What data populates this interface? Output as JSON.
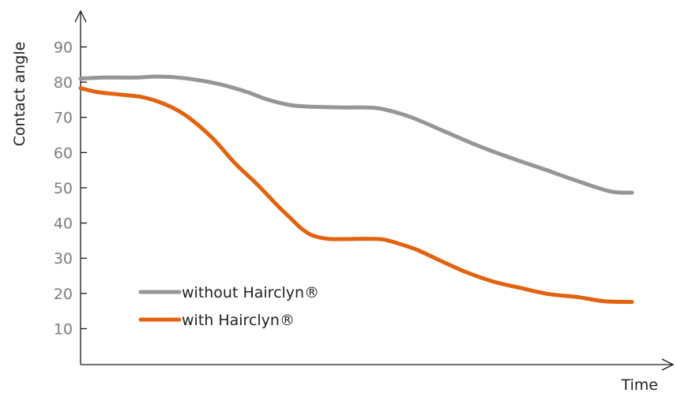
{
  "chart_data": {
    "type": "line",
    "xlabel": "Time",
    "ylabel": "Contact angle",
    "xlim": [
      0,
      100
    ],
    "ylim": [
      0,
      100
    ],
    "yticks": [
      10,
      20,
      30,
      40,
      50,
      60,
      70,
      80,
      90
    ],
    "grid": false,
    "legend_position": "bottom-left",
    "series": [
      {
        "name": "without Hairclyn®",
        "color": "#969599",
        "points": [
          [
            0,
            81
          ],
          [
            4,
            81.3
          ],
          [
            10,
            81.3
          ],
          [
            14,
            81.6
          ],
          [
            19,
            81.1
          ],
          [
            25,
            79.5
          ],
          [
            30,
            77.3
          ],
          [
            34,
            75
          ],
          [
            38,
            73.5
          ],
          [
            42,
            73
          ],
          [
            48,
            72.8
          ],
          [
            52,
            72.8
          ],
          [
            55,
            72.3
          ],
          [
            60,
            70
          ],
          [
            66,
            66
          ],
          [
            72,
            62
          ],
          [
            78,
            58.5
          ],
          [
            84,
            55.3
          ],
          [
            90,
            52
          ],
          [
            96,
            49
          ],
          [
            100,
            48.6
          ]
        ]
      },
      {
        "name": "with Hairclyn®",
        "color": "#e2620d",
        "points": [
          [
            0,
            78.3
          ],
          [
            3,
            77.2
          ],
          [
            7,
            76.5
          ],
          [
            11,
            75.8
          ],
          [
            14,
            74.5
          ],
          [
            17,
            72.5
          ],
          [
            20,
            69.5
          ],
          [
            24,
            64
          ],
          [
            28,
            57
          ],
          [
            32,
            51
          ],
          [
            36,
            44.5
          ],
          [
            38,
            41.5
          ],
          [
            40,
            38.5
          ],
          [
            42,
            36.5
          ],
          [
            45,
            35.5
          ],
          [
            50,
            35.5
          ],
          [
            53,
            35.5
          ],
          [
            55,
            35.3
          ],
          [
            58,
            34
          ],
          [
            61,
            32.4
          ],
          [
            65,
            29.5
          ],
          [
            70,
            26
          ],
          [
            75,
            23.3
          ],
          [
            80,
            21.5
          ],
          [
            85,
            19.8
          ],
          [
            90,
            19
          ],
          [
            95,
            17.8
          ],
          [
            100,
            17.6
          ]
        ]
      }
    ]
  }
}
